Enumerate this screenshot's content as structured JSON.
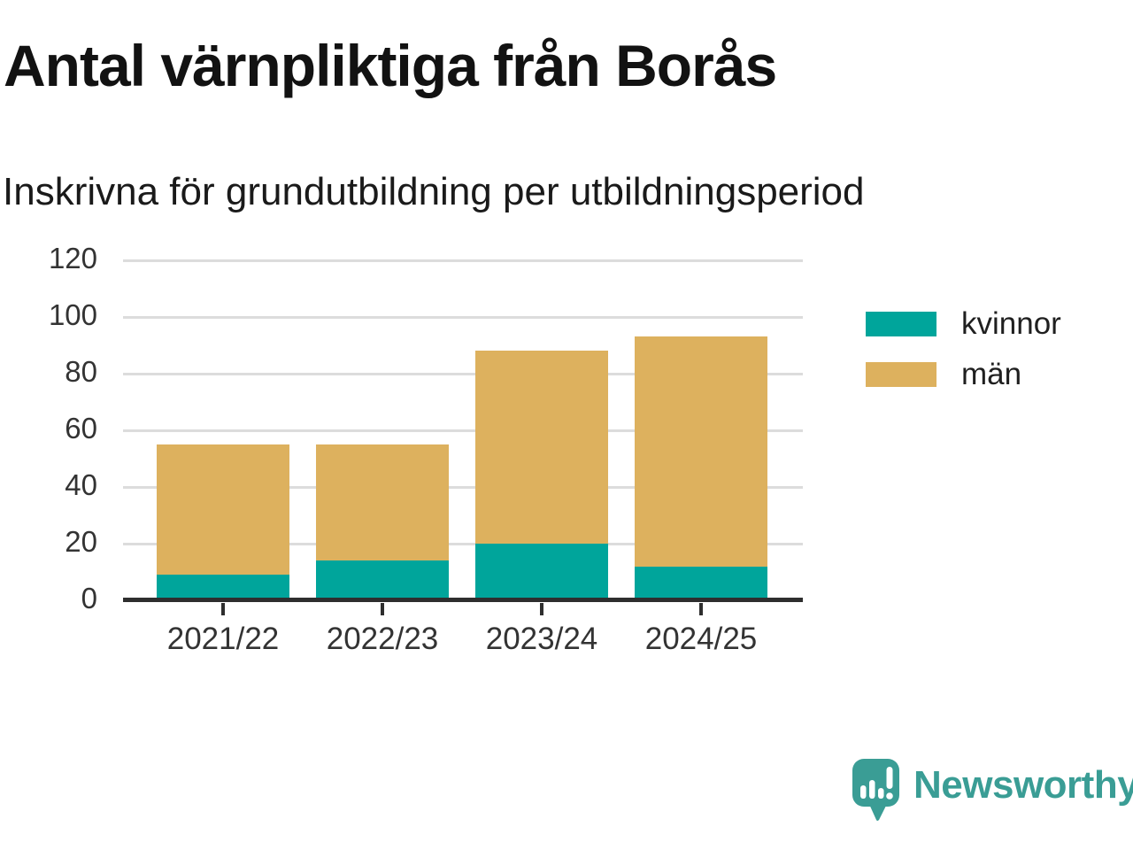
{
  "title": "Antal värnpliktiga från Borås",
  "subtitle": "Inskrivna för grundutbildning per utbildningsperiod",
  "chart_data": {
    "type": "bar",
    "stacked": true,
    "title": "Antal värnpliktiga från Borås",
    "subtitle": "Inskrivna för grundutbildning per utbildningsperiod",
    "categories": [
      "2021/22",
      "2022/23",
      "2023/24",
      "2024/25"
    ],
    "series": [
      {
        "name": "kvinnor",
        "color": "#00a59b",
        "values": [
          9,
          14,
          20,
          12
        ]
      },
      {
        "name": "män",
        "color": "#ddb15e",
        "values": [
          46,
          41,
          68,
          81
        ]
      }
    ],
    "stack_totals": [
      55,
      55,
      88,
      93
    ],
    "xlabel": "",
    "ylabel": "",
    "ylim": [
      0,
      120
    ],
    "yticks": [
      0,
      20,
      40,
      60,
      80,
      100,
      120
    ],
    "grid": "horizontal",
    "legend_position": "right"
  },
  "branding": {
    "name": "Newsworthy",
    "color": "#3a9d95"
  },
  "colors": {
    "background": "#ffffff",
    "axis_line": "#2e2e2e",
    "gridline": "#dcdcdc",
    "tick_label": "#333333",
    "kvinnor": "#00a59b",
    "man": "#ddb15e"
  }
}
